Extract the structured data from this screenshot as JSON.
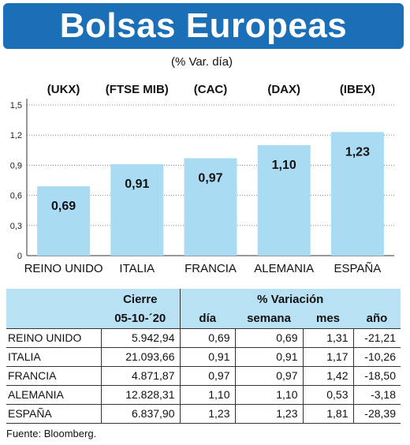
{
  "header": {
    "title": "Bolsas Europeas",
    "subtitle": "(% Var. día)"
  },
  "chart_data": {
    "type": "bar",
    "indices": [
      "(UKX)",
      "(FTSE MIB)",
      "(CAC)",
      "(DAX)",
      "(IBEX)"
    ],
    "categories": [
      "REINO UNIDO",
      "ITALIA",
      "FRANCIA",
      "ALEMANIA",
      "ESPAÑA"
    ],
    "values": [
      0.69,
      0.91,
      0.97,
      1.1,
      1.23
    ],
    "value_labels": [
      "0,69",
      "0,91",
      "0,97",
      "1,10",
      "1,23"
    ],
    "y_ticks": [
      "0",
      "0,3",
      "0,6",
      "0,9",
      "1,2",
      "1,5"
    ],
    "ylim": [
      0,
      1.5
    ],
    "bar_color": "#a9dcf3"
  },
  "table": {
    "group_headers": {
      "cierre": "Cierre",
      "variacion": "% Variación"
    },
    "sub_headers": {
      "date": "05-10-´20",
      "dia": "día",
      "semana": "semana",
      "mes": "mes",
      "ano": "año"
    },
    "rows": [
      {
        "country": "REINO UNIDO",
        "cierre": "5.942,94",
        "dia": "0,69",
        "semana": "0,69",
        "mes": "1,31",
        "ano": "-21,21"
      },
      {
        "country": "ITALIA",
        "cierre": "21.093,66",
        "dia": "0,91",
        "semana": "0,91",
        "mes": "1,17",
        "ano": "-10,26"
      },
      {
        "country": "FRANCIA",
        "cierre": "4.871,87",
        "dia": "0,97",
        "semana": "0,97",
        "mes": "1,42",
        "ano": "-18,50"
      },
      {
        "country": "ALEMANIA",
        "cierre": "12.828,31",
        "dia": "1,10",
        "semana": "1,10",
        "mes": "0,53",
        "ano": "-3,18"
      },
      {
        "country": "ESPAÑA",
        "cierre": "6.837,90",
        "dia": "1,23",
        "semana": "1,23",
        "mes": "1,81",
        "ano": "-28,39"
      }
    ]
  },
  "footer": {
    "source": "Fuente: Bloomberg."
  }
}
